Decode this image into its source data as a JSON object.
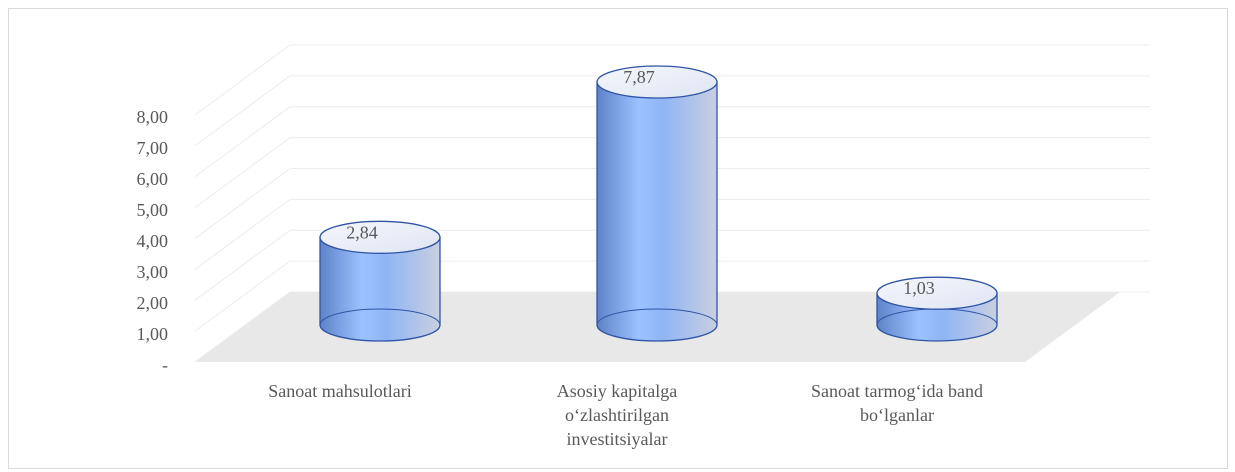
{
  "chart_data": {
    "type": "bar",
    "categories": [
      "Sanoat mahsulotlari",
      "Asosiy kapitalga o‘zlashtirilgan investitsiyalar",
      "Sanoat tarmog‘ida band bo‘lganlar"
    ],
    "values": [
      2.84,
      7.87,
      1.03
    ],
    "value_labels": [
      "2,84",
      "7,87",
      "1,03"
    ],
    "color": "#8cb4f5",
    "ylim": [
      0,
      8
    ],
    "yticks": [
      {
        "value": 0,
        "label": "-"
      },
      {
        "value": 1,
        "label": "1,00"
      },
      {
        "value": 2,
        "label": "2,00"
      },
      {
        "value": 3,
        "label": "3,00"
      },
      {
        "value": 4,
        "label": "4,00"
      },
      {
        "value": 5,
        "label": "5,00"
      },
      {
        "value": 6,
        "label": "6,00"
      },
      {
        "value": 7,
        "label": "7,00"
      },
      {
        "value": 8,
        "label": "8,00"
      }
    ],
    "grid": true
  }
}
